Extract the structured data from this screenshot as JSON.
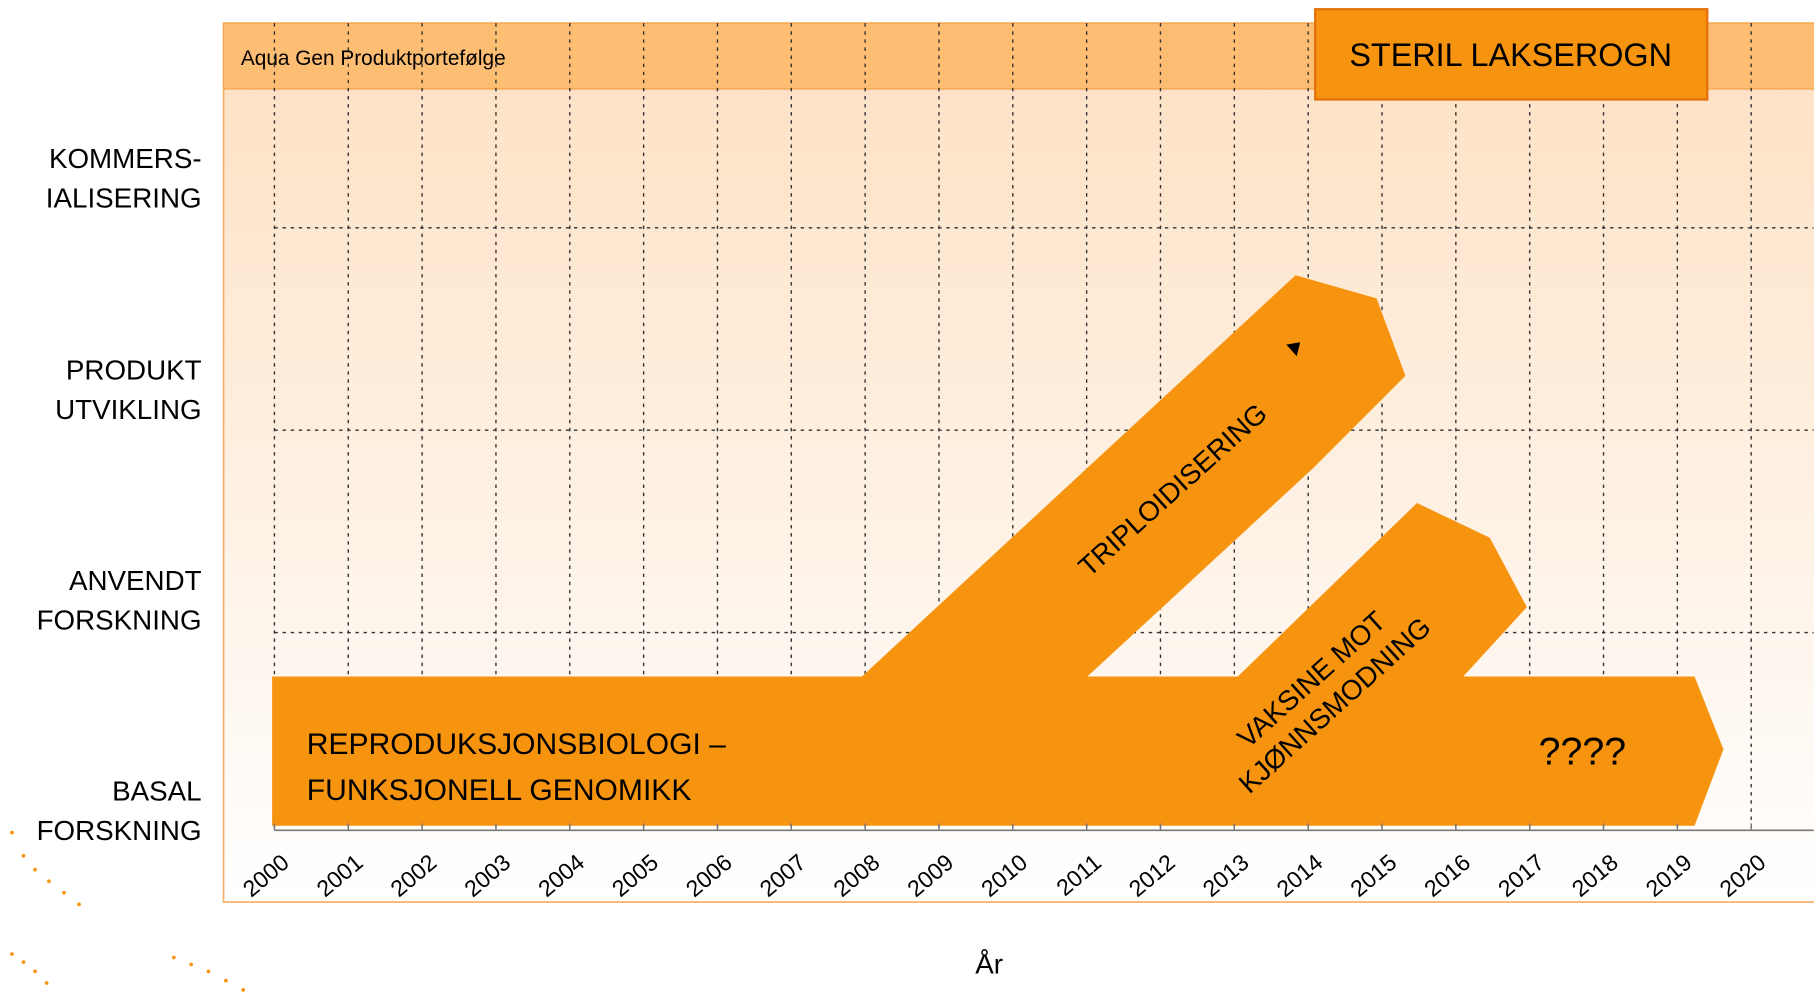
{
  "header": {
    "title": "Aqua Gen Produktportefølge",
    "box": "STERIL LAKSEROGN"
  },
  "stages": [
    [
      "KOMMERS-",
      "IALISERING"
    ],
    [
      "PRODUKT",
      "UTVIKLING"
    ],
    [
      "ANVENDT",
      "FORSKNING"
    ],
    [
      "BASAL",
      "FORSKNING"
    ]
  ],
  "years": [
    "2000",
    "2001",
    "2002",
    "2003",
    "2004",
    "2005",
    "2006",
    "2007",
    "2008",
    "2009",
    "2010",
    "2011",
    "2012",
    "2013",
    "2014",
    "2015",
    "2016",
    "2017",
    "2018",
    "2019",
    "2020"
  ],
  "x_axis_title": "År",
  "arrows": {
    "main": [
      "REPRODUKSJONSBIOLOGI –",
      "FUNKSJONELL GENOMIKK"
    ],
    "unknown": "????",
    "triploid": "TRIPLOIDISERING",
    "vaccine": [
      "VAKSINE MOT",
      "KJØNNSMODNING"
    ]
  }
}
